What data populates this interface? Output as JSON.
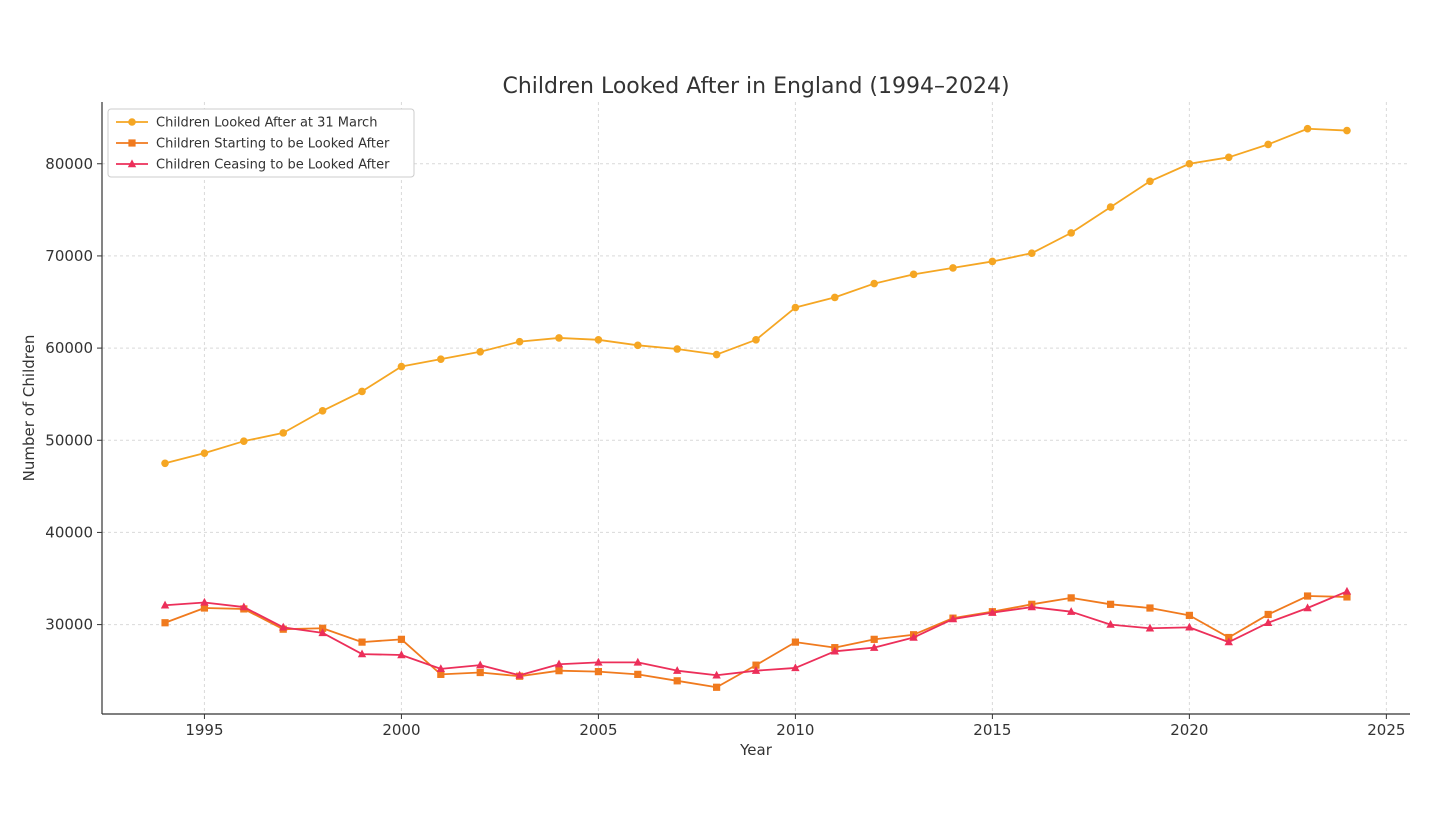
{
  "chart_data": {
    "type": "line",
    "title": "Children Looked After in England (1994–2024)",
    "xlabel": "Year",
    "ylabel": "Number of Children",
    "xlim": [
      1992.4,
      2025.6
    ],
    "ylim": [
      20300,
      86700
    ],
    "xticks": [
      1995,
      2000,
      2005,
      2010,
      2015,
      2020,
      2025
    ],
    "yticks": [
      30000,
      40000,
      50000,
      60000,
      70000,
      80000
    ],
    "grid": true,
    "legend_position": "top-left",
    "x": [
      1994,
      1995,
      1996,
      1997,
      1998,
      1999,
      2000,
      2001,
      2002,
      2003,
      2004,
      2005,
      2006,
      2007,
      2008,
      2009,
      2010,
      2011,
      2012,
      2013,
      2014,
      2015,
      2016,
      2017,
      2018,
      2019,
      2020,
      2021,
      2022,
      2023,
      2024
    ],
    "series": [
      {
        "name": "Children Looked After at 31 March",
        "color": "#f5a623",
        "marker": "circle",
        "values": [
          47500,
          48600,
          49900,
          50800,
          53200,
          55300,
          58000,
          58800,
          59600,
          60700,
          61100,
          60900,
          60300,
          59900,
          59300,
          60900,
          64400,
          65500,
          67000,
          68000,
          68700,
          69400,
          70300,
          72500,
          75300,
          78100,
          80000,
          80700,
          82100,
          83800,
          83600
        ]
      },
      {
        "name": "Children Starting to be Looked After",
        "color": "#f07a1e",
        "marker": "square",
        "values": [
          30200,
          31800,
          31700,
          29500,
          29600,
          28100,
          28400,
          24600,
          24800,
          24400,
          25000,
          24900,
          24600,
          23900,
          23200,
          25600,
          28100,
          27500,
          28400,
          28900,
          30700,
          31400,
          32200,
          32900,
          32200,
          31800,
          31000,
          28600,
          31100,
          33100,
          33000
        ]
      },
      {
        "name": "Children Ceasing to be Looked After",
        "color": "#ec2f5a",
        "marker": "triangle",
        "values": [
          32100,
          32400,
          31900,
          29700,
          29100,
          26800,
          26700,
          25200,
          25600,
          24500,
          25700,
          25900,
          25900,
          25000,
          24500,
          25000,
          25300,
          27100,
          27500,
          28600,
          30600,
          31300,
          31900,
          31400,
          30000,
          29600,
          29700,
          28100,
          30200,
          31800,
          33600
        ]
      }
    ]
  }
}
